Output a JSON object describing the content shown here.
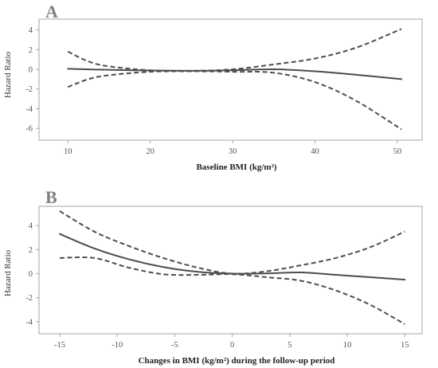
{
  "chart_data": [
    {
      "type": "line",
      "panel_label": "A",
      "title": "",
      "xlabel": "Baseline BMI (kg/m²)",
      "ylabel": "Hazard Ratio",
      "xlim": [
        6.5,
        53
      ],
      "ylim": [
        -7.2,
        5.1
      ],
      "xticks": [
        10,
        20,
        30,
        40,
        50
      ],
      "yticks": [
        4,
        2,
        0,
        -2,
        -4,
        -6
      ],
      "grid": false,
      "legend": "none",
      "series": [
        {
          "style": "solid",
          "color": "#4d4d4d",
          "x": [
            10,
            15,
            20,
            25,
            30,
            35,
            40,
            45,
            50.5
          ],
          "y": [
            0.05,
            -0.05,
            -0.12,
            -0.15,
            -0.1,
            0.0,
            -0.2,
            -0.55,
            -1.0
          ]
        },
        {
          "style": "dashed",
          "color": "#4d4d4d",
          "x": [
            10,
            12.5,
            15,
            20,
            25,
            30,
            35,
            40,
            45,
            50.5
          ],
          "y": [
            1.8,
            0.8,
            0.3,
            -0.1,
            -0.15,
            0.0,
            0.5,
            1.1,
            2.2,
            4.1
          ]
        },
        {
          "style": "dashed",
          "color": "#4d4d4d",
          "x": [
            10,
            12.5,
            15,
            20,
            25,
            30,
            35,
            40,
            45,
            50.5
          ],
          "y": [
            -1.8,
            -1.0,
            -0.6,
            -0.25,
            -0.2,
            -0.25,
            -0.35,
            -1.3,
            -3.2,
            -6.1
          ]
        }
      ]
    },
    {
      "type": "line",
      "panel_label": "B",
      "title": "",
      "xlabel": "Changes in BMI (kg/m²) during the follow-up period",
      "ylabel": "Hazard Ratio",
      "xlim": [
        -16.8,
        16.5
      ],
      "ylim": [
        -5.0,
        5.6
      ],
      "xticks": [
        -15,
        -10,
        -5,
        0,
        5,
        10,
        15
      ],
      "yticks": [
        4,
        2,
        0,
        -2,
        -4
      ],
      "grid": false,
      "legend": "none",
      "series": [
        {
          "style": "solid",
          "color": "#4d4d4d",
          "x": [
            -15,
            -12,
            -9,
            -6,
            -3,
            0,
            3,
            6,
            9,
            12,
            15
          ],
          "y": [
            3.3,
            2.1,
            1.2,
            0.55,
            0.15,
            0.0,
            0.02,
            0.1,
            -0.1,
            -0.3,
            -0.5
          ]
        },
        {
          "style": "dashed",
          "color": "#4d4d4d",
          "x": [
            -15,
            -12,
            -9,
            -6,
            -3,
            0,
            3,
            6,
            9,
            12,
            15
          ],
          "y": [
            5.2,
            3.5,
            2.3,
            1.3,
            0.5,
            0.0,
            0.2,
            0.7,
            1.3,
            2.2,
            3.5
          ]
        },
        {
          "style": "dashed",
          "color": "#4d4d4d",
          "x": [
            -15,
            -12,
            -9,
            -6,
            -3,
            0,
            3,
            6,
            9,
            12,
            15
          ],
          "y": [
            1.3,
            1.3,
            0.5,
            -0.05,
            -0.1,
            -0.05,
            -0.3,
            -0.6,
            -1.4,
            -2.6,
            -4.2
          ]
        }
      ]
    }
  ]
}
